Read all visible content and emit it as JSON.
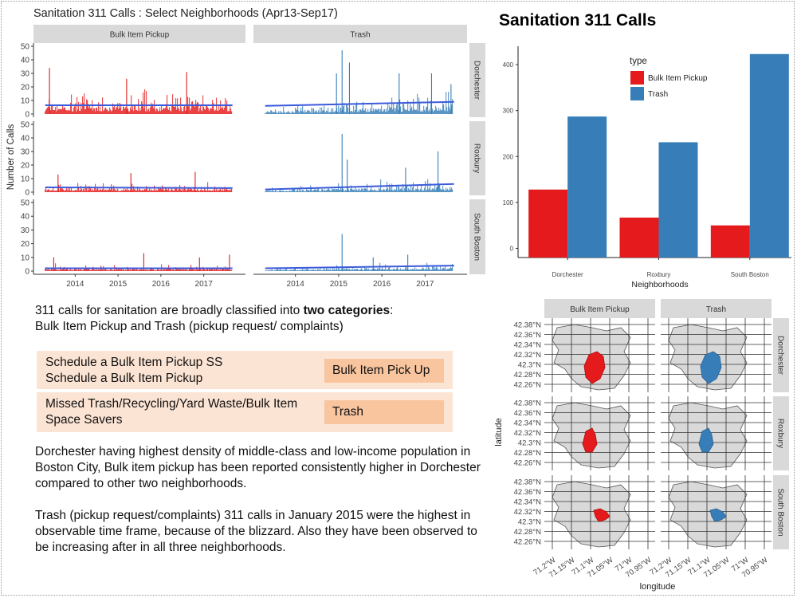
{
  "colors": {
    "bulk": "#e41a1c",
    "trash": "#377eb8",
    "strip": "#d9d9d9",
    "box_light": "#fce4d4",
    "box_badge": "#f8c59e"
  },
  "page": {
    "title": "Sanitation 311 Calls",
    "intro_pre": "311 calls for sanitation are broadly classified into ",
    "intro_bold": "two categories",
    "intro_colon": ":",
    "intro_line2": "Bulk Item Pickup  and Trash (pickup request/  complaints)",
    "categories": [
      {
        "lines": [
          "Schedule a Bulk Item Pickup SS",
          "Schedule a Bulk Item Pickup"
        ],
        "label": "Bulk Item Pick Up"
      },
      {
        "lines": [
          "Missed Trash/Recycling/Yard Waste/Bulk Item",
          "Space Savers"
        ],
        "label": "Trash"
      }
    ],
    "paragraph1": "Dorchester having highest density of middle-class and low-income population in Boston City, Bulk item pickup has been reported consistently higher  in Dorchester compared to other two neighborhoods.",
    "paragraph2": "Trash (pickup request/complaints) 311 calls in January 2015 were the highest in observable time frame, because of the blizzard. Also they have been observed to be increasing after in all three neighborhoods."
  },
  "chart_data": [
    {
      "type": "bar",
      "title": "Sanitation 311 Calls : Select Neighborhoods (Apr13-Sep17)",
      "ylabel": "Number of Calls",
      "columns": [
        "Bulk Item Pickup",
        "Trash"
      ],
      "rows": [
        "Dorchester",
        "Roxbury",
        "South Boston"
      ],
      "x_ticks": [
        "2014",
        "2015",
        "2016",
        "2017"
      ],
      "y_ticks": [
        0,
        10,
        20,
        30,
        40,
        50
      ],
      "ylim": [
        0,
        50
      ],
      "xlim": [
        2013.25,
        2017.75
      ],
      "panels": [
        {
          "column": "Bulk Item Pickup",
          "row": "Dorchester",
          "mean": 6.5,
          "typical_max": 20,
          "peaks": [
            [
              2013.4,
              34
            ],
            [
              2016.6,
              31
            ],
            [
              2015.2,
              26
            ]
          ],
          "trend": [
            6.5,
            6.5
          ]
        },
        {
          "column": "Trash",
          "row": "Dorchester",
          "mean": 3,
          "typical_max": 9,
          "peaks": [
            [
              2015.08,
              47
            ],
            [
              2015.25,
              38
            ],
            [
              2014.95,
              30
            ],
            [
              2016.4,
              30
            ],
            [
              2017.15,
              30
            ],
            [
              2017.6,
              22
            ]
          ],
          "trend": [
            6,
            9
          ]
        },
        {
          "column": "Bulk Item Pickup",
          "row": "Roxbury",
          "mean": 3,
          "typical_max": 8,
          "peaks": [
            [
              2016.8,
              15
            ],
            [
              2015.3,
              14
            ],
            [
              2013.6,
              13
            ]
          ],
          "trend": [
            3.5,
            3
          ]
        },
        {
          "column": "Trash",
          "row": "Roxbury",
          "mean": 2,
          "typical_max": 6,
          "peaks": [
            [
              2015.08,
              43
            ],
            [
              2015.2,
              24
            ],
            [
              2017.3,
              30
            ],
            [
              2016.55,
              18
            ]
          ],
          "trend": [
            2,
            6
          ]
        },
        {
          "column": "Bulk Item Pickup",
          "row": "South Boston",
          "mean": 2,
          "typical_max": 6,
          "peaks": [
            [
              2015.6,
              13
            ],
            [
              2017.6,
              12
            ],
            [
              2013.5,
              10
            ],
            [
              2016.9,
              10
            ]
          ],
          "trend": [
            2,
            2
          ]
        },
        {
          "column": "Trash",
          "row": "South Boston",
          "mean": 1.5,
          "typical_max": 4,
          "peaks": [
            [
              2015.08,
              27
            ],
            [
              2016.6,
              12
            ],
            [
              2015.8,
              10
            ]
          ],
          "trend": [
            2,
            4
          ]
        }
      ]
    },
    {
      "type": "bar",
      "title": "Sanitation 311 Calls",
      "xlabel": "Neighborhoods",
      "ylabel": "",
      "legend_title": "type",
      "legend_placement": "top-right",
      "categories": [
        "Dorchester",
        "Roxbury",
        "South Boston"
      ],
      "series": [
        {
          "name": "Bulk Item Pickup",
          "values": [
            128,
            67,
            50
          ]
        },
        {
          "name": "Trash",
          "values": [
            287,
            231,
            423
          ]
        }
      ],
      "y_ticks": [
        0,
        100,
        200,
        300,
        400
      ],
      "ylim": [
        -20,
        440
      ]
    },
    {
      "type": "map",
      "xlabel": "longitude",
      "ylabel": "latitude",
      "columns": [
        "Bulk Item Pickup",
        "Trash"
      ],
      "rows": [
        "Dorchester",
        "Roxbury",
        "South Boston"
      ],
      "y_ticks": [
        "42.38°N",
        "42.36°N",
        "42.34°N",
        "42.32°N",
        "42.3°N",
        "42.28°N",
        "42.26°N"
      ],
      "x_ticks": [
        "71.2°W",
        "71.15°W",
        "71.1°W",
        "71.05°W",
        "71°W",
        "70.95°W"
      ]
    }
  ]
}
